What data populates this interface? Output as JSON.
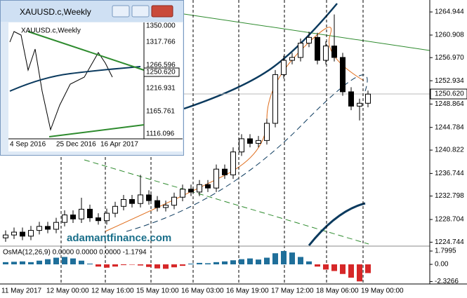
{
  "inset": {
    "title": "XAUUSD.c,Weekly",
    "symbol": "XAUUSD.c,Weekly",
    "price_labels": [
      "1350.000",
      "1317.766",
      "1266.596",
      "1216.931",
      "1165.761",
      "1116.096"
    ],
    "current_label": "1250.620",
    "date_labels": [
      "4 Sep 2016",
      "25 Dec 2016",
      "16 Apr 2017"
    ]
  },
  "watermark": "adamantfinance.com",
  "chart_data": [
    {
      "type": "candlestick",
      "opens": [
        1225.5,
        1226.0,
        1226.5,
        1225.8,
        1226.8,
        1227.5,
        1227.0,
        1228.2,
        1229.5,
        1228.8,
        1230.5,
        1229.0,
        1228.5,
        1229.8,
        1231.0,
        1232.2,
        1231.5,
        1233.0,
        1232.0,
        1230.8,
        1231.2,
        1232.6,
        1234.0,
        1233.5,
        1234.8,
        1234.2,
        1237.5,
        1236.5,
        1240.5,
        1242.8,
        1242.0,
        1242.5,
        1245.5,
        1254.0,
        1256.5,
        1257.0,
        1259.5,
        1260.5,
        1256.5,
        1259.0,
        1257.0,
        1251.0,
        1248.5,
        1249.0
      ],
      "highs": [
        1226.8,
        1227.3,
        1227.3,
        1227.6,
        1228.3,
        1228.3,
        1229.0,
        1230.3,
        1230.3,
        1232.5,
        1231.3,
        1229.8,
        1230.6,
        1231.8,
        1233.0,
        1233.0,
        1236.5,
        1233.8,
        1232.8,
        1232.0,
        1233.4,
        1234.8,
        1234.8,
        1235.6,
        1235.6,
        1238.3,
        1238.3,
        1241.3,
        1243.6,
        1243.6,
        1243.3,
        1246.3,
        1254.8,
        1257.3,
        1257.8,
        1260.3,
        1261.5,
        1261.3,
        1259.8,
        1264.5,
        1257.8,
        1251.8,
        1249.8,
        1251.2
      ],
      "lows": [
        1224.8,
        1225.3,
        1225.1,
        1225.1,
        1226.1,
        1226.3,
        1226.3,
        1227.5,
        1228.1,
        1228.1,
        1228.3,
        1227.8,
        1227.8,
        1229.1,
        1230.3,
        1230.8,
        1230.8,
        1231.3,
        1230.1,
        1230.1,
        1230.5,
        1231.9,
        1232.8,
        1232.8,
        1233.5,
        1233.5,
        1235.8,
        1235.8,
        1239.8,
        1241.3,
        1241.3,
        1241.8,
        1244.8,
        1253.3,
        1255.8,
        1256.3,
        1258.8,
        1255.8,
        1255.8,
        1256.3,
        1250.3,
        1247.8,
        1246.0,
        1248.3
      ],
      "closes": [
        1226.0,
        1226.5,
        1225.8,
        1226.8,
        1227.5,
        1227.0,
        1228.2,
        1229.5,
        1228.8,
        1230.5,
        1229.0,
        1228.5,
        1229.8,
        1231.0,
        1232.2,
        1231.5,
        1233.0,
        1232.0,
        1230.8,
        1231.2,
        1232.6,
        1234.0,
        1233.5,
        1234.8,
        1234.2,
        1237.5,
        1236.5,
        1240.5,
        1242.8,
        1242.0,
        1242.5,
        1245.5,
        1254.0,
        1256.5,
        1257.0,
        1259.5,
        1260.5,
        1256.5,
        1259.0,
        1257.0,
        1251.0,
        1248.5,
        1249.0,
        1250.6
      ],
      "up_color": "#ffffff",
      "down_color": "#000000",
      "ylim": [
        1224.18,
        1267.03
      ],
      "yticks": [
        1264.944,
        1260.908,
        {
          "value": 1256.97,
          "label": "1256.970"
        },
        1252.934,
        1248.864,
        1244.784,
        1240.822,
        1236.744,
        1232.798,
        1228.704,
        1224.744
      ],
      "current_price": {
        "value": 1250.62,
        "label": "1250.620"
      },
      "xlabels": [
        "11 May 2017",
        "12 May 00:00",
        "12 May 16:00",
        "15 May 10:00",
        "16 May 03:00",
        "16 May 19:00",
        "17 May 12:00",
        "18 May 06:00",
        "19 May 00:00"
      ]
    },
    {
      "type": "bar",
      "title": "OsMA(12,26,9) 0.0000 0.0000 0.0000 -1.1794",
      "values": [
        0.3,
        0.35,
        0.4,
        0.3,
        0.5,
        0.7,
        0.9,
        1.0,
        0.8,
        0.5,
        0.1,
        -0.3,
        -0.45,
        -0.3,
        -0.1,
        -0.05,
        -0.15,
        -0.35,
        -0.55,
        -0.6,
        -0.4,
        -0.2,
        0.1,
        0.2,
        0.15,
        0.3,
        0.4,
        0.55,
        0.7,
        0.8,
        0.65,
        0.9,
        1.5,
        1.8,
        1.6,
        1.0,
        0.4,
        -0.3,
        -0.7,
        -0.9,
        -1.3,
        -1.8,
        -2.3,
        -1.1794
      ],
      "positive_color": "#1f6f9a",
      "negative_color": "#d62728",
      "ylim": [
        -2.65,
        2.37
      ],
      "yticks": [
        1.7995,
        {
          "value": 0,
          "label": "0.00"
        },
        -2.3266
      ]
    }
  ]
}
